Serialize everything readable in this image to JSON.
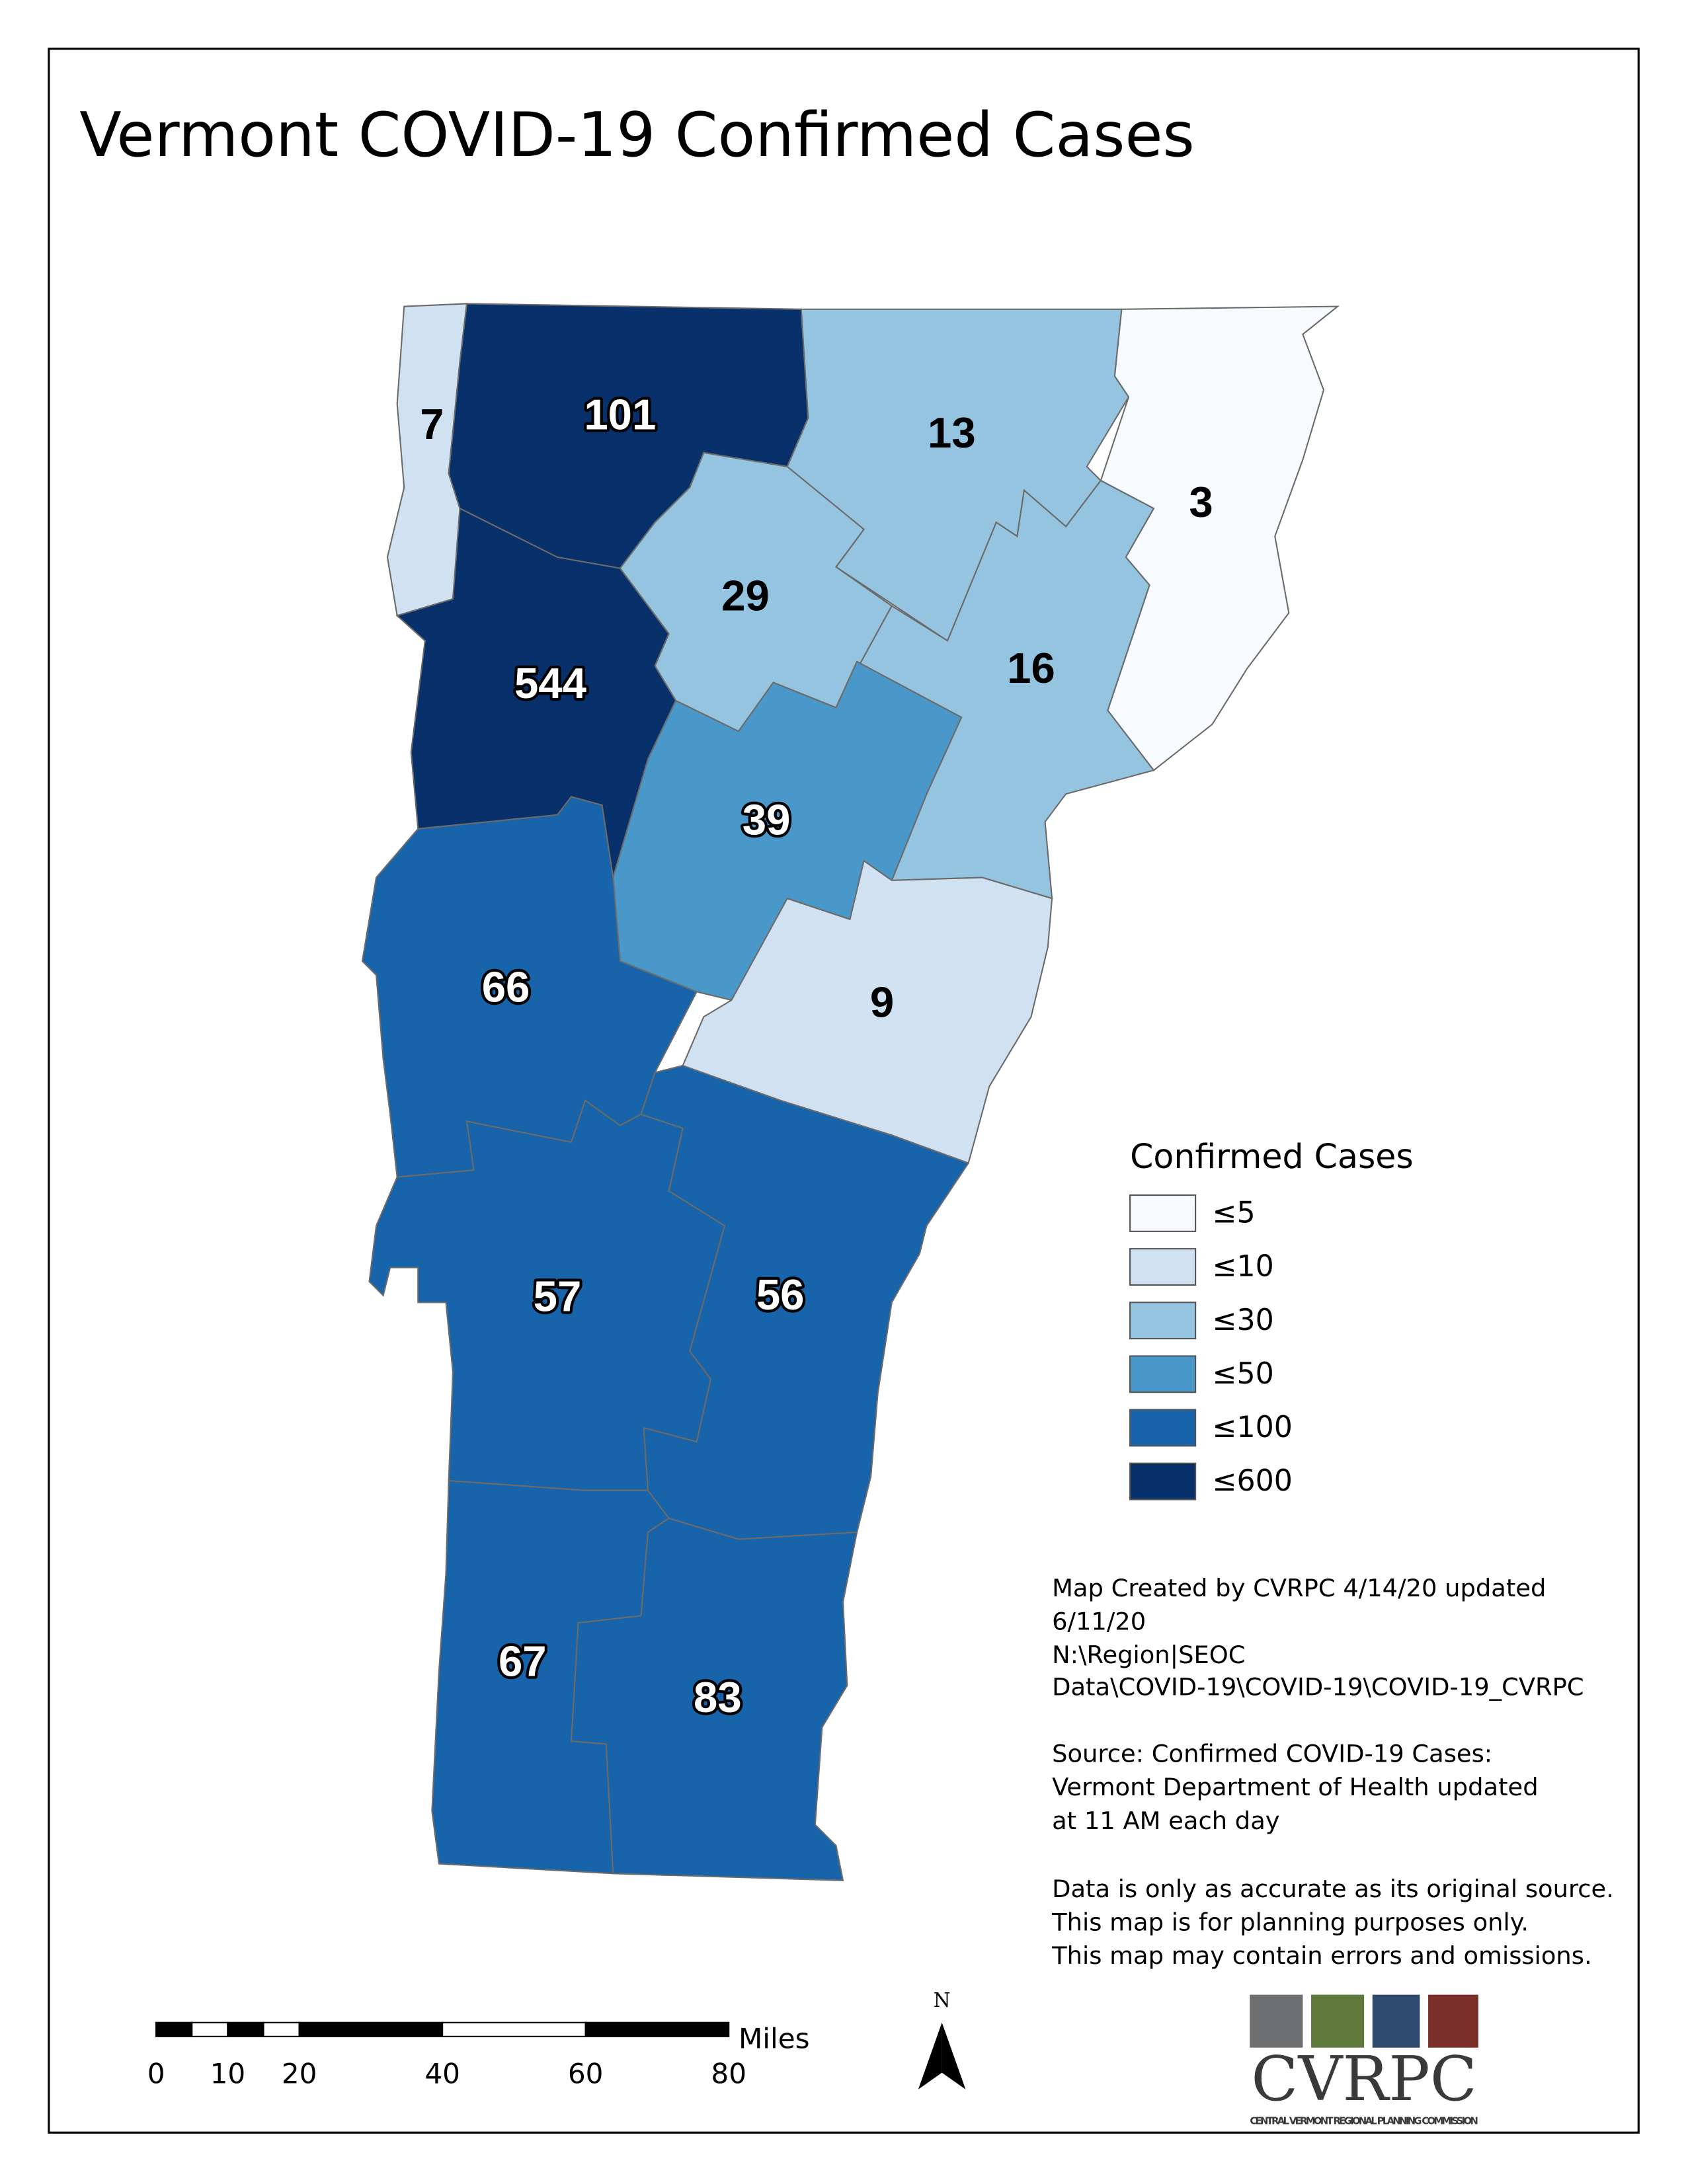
{
  "map": {
    "title": "Vermont COVID-19 Confirmed Cases",
    "regions": [
      {
        "value": 7
      },
      {
        "value": 101
      },
      {
        "value": 13
      },
      {
        "value": 3
      },
      {
        "value": 29
      },
      {
        "value": 16
      },
      {
        "value": 544
      },
      {
        "value": 39
      },
      {
        "value": 9
      },
      {
        "value": 66
      },
      {
        "value": 56
      },
      {
        "value": 57
      },
      {
        "value": 67
      },
      {
        "value": 83
      }
    ],
    "legend": {
      "title": "Confirmed Cases",
      "bins": [
        {
          "value": 5,
          "label": "≤5",
          "color": "#f7fbff"
        },
        {
          "value": 10,
          "label": "≤10",
          "color": "#d0e1f2"
        },
        {
          "value": 30,
          "label": "≤30",
          "color": "#94c4df"
        },
        {
          "value": 50,
          "label": "≤50",
          "color": "#4a98c9"
        },
        {
          "value": 100,
          "label": "≤100",
          "color": "#1764ab"
        },
        {
          "value": 600,
          "label": "≤600",
          "color": "#08306b"
        }
      ]
    },
    "notes": [
      "Map Created by CVRPC 4/14/20 updated",
      "6/11/20",
      "N:\\Region|SEOC",
      "Data\\COVID-19\\COVID-19\\COVID-19_CVRPC",
      "Source: Confirmed COVID-19 Cases:",
      "Vermont Department of Health updated",
      "at 11 AM each day",
      "Data is only as accurate as its original source.",
      "This map is for planning purposes only.",
      "This map may contain errors and omissions."
    ],
    "scale_bar": {
      "unit": "Miles",
      "ticks": [
        0,
        10,
        20,
        40,
        60,
        80
      ]
    },
    "north": "N",
    "logo": {
      "name": "CVRPC",
      "subtitle": "CENTRAL VERMONT REGIONAL PLANNING COMMISSION"
    }
  }
}
